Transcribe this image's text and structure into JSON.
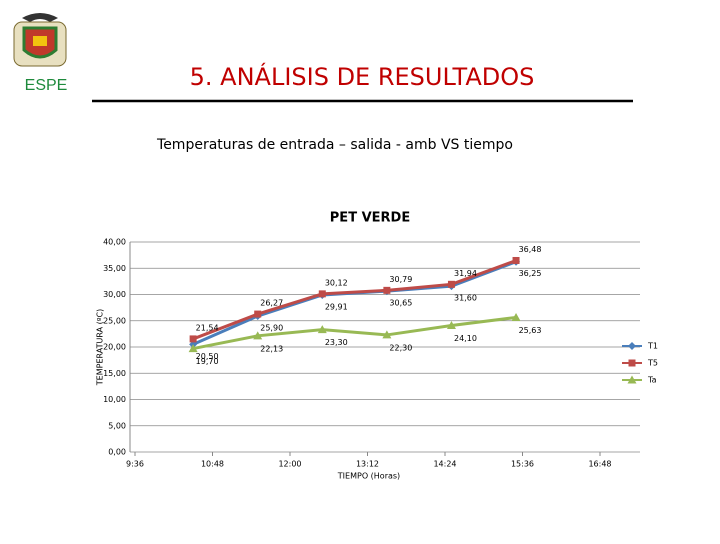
{
  "header": {
    "logo_text": "ESPE",
    "title": "5. ANÁLISIS DE RESULTADOS",
    "subtitle": "Temperaturas de entrada – salida - amb VS tiempo"
  },
  "chart_data": {
    "type": "line",
    "title": "PET VERDE",
    "x_label": "TIEMPO (Horas)",
    "y_label": "TEMPERATURA (ºC)",
    "x": [
      "10:30",
      "11:30",
      "12:30",
      "13:30",
      "14:30",
      "15:30"
    ],
    "xlim": [
      "9:36",
      "16:48"
    ],
    "xticks": [
      "9:36",
      "10:48",
      "12:00",
      "13:12",
      "14:24",
      "15:36",
      "16:48"
    ],
    "ylim": [
      0,
      40
    ],
    "yticks": [
      {
        "value": 0,
        "label": "0,00"
      },
      {
        "value": 5,
        "label": "5,00"
      },
      {
        "value": 10,
        "label": "10,00"
      },
      {
        "value": 15,
        "label": "15,00"
      },
      {
        "value": 20,
        "label": "20,00"
      },
      {
        "value": 25,
        "label": "25,00"
      },
      {
        "value": 30,
        "label": "30,00"
      },
      {
        "value": 35,
        "label": "35,00"
      },
      {
        "value": 40,
        "label": "40,00"
      }
    ],
    "grid": true,
    "legend": "right",
    "series": [
      {
        "name": "T1",
        "color": "#4a7ebb",
        "marker": "diamond",
        "values": [
          20.5,
          25.9,
          29.91,
          30.65,
          31.6,
          36.25
        ],
        "value_labels": [
          "20,50",
          "25,90",
          "29,91",
          "30,65",
          "31,60",
          "36,25"
        ]
      },
      {
        "name": "T5",
        "color": "#be4b48",
        "marker": "square",
        "values": [
          21.54,
          26.27,
          30.12,
          30.79,
          31.94,
          36.48
        ],
        "value_labels": [
          "21,54",
          "26,27",
          "30,12",
          "30,79",
          "31,94",
          "36,48"
        ]
      },
      {
        "name": "Ta",
        "color": "#98b954",
        "marker": "triangle",
        "values": [
          19.7,
          22.13,
          23.3,
          22.3,
          24.1,
          25.63
        ],
        "value_labels": [
          "19,70",
          "22,13",
          "23,30",
          "22,30",
          "24,10",
          "25,63"
        ]
      }
    ]
  }
}
